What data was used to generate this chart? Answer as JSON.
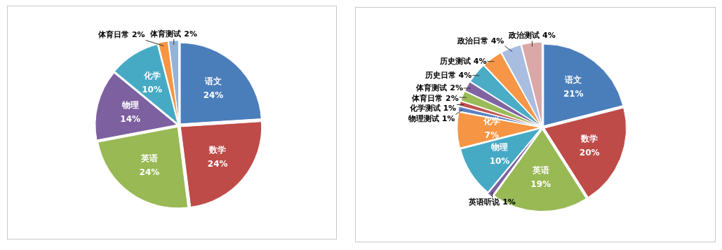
{
  "chart_data": [
    {
      "type": "pie",
      "categories": [
        "语文",
        "数学",
        "英语",
        "物理",
        "化学",
        "体育日常",
        "体育测试"
      ],
      "values": [
        24,
        24,
        24,
        14,
        10,
        2,
        2
      ],
      "value_labels": [
        "24%",
        "24%",
        "24%",
        "14%",
        "10%",
        "2%",
        "2%"
      ],
      "colors": [
        "#4a7ebb",
        "#be4b48",
        "#98b954",
        "#7d60a0",
        "#46aac5",
        "#f69544",
        "#95b3d7"
      ]
    },
    {
      "type": "pie",
      "categories": [
        "语文",
        "数学",
        "英语",
        "英语听说",
        "物理",
        "化学",
        "物理测试",
        "化学测试",
        "体育日常",
        "体育测试",
        "历史日常",
        "历史测试",
        "政治日常",
        "政治测试"
      ],
      "values": [
        21,
        20,
        19,
        1,
        10,
        7,
        1,
        1,
        2,
        2,
        4,
        4,
        4,
        4
      ],
      "value_labels": [
        "21%",
        "20%",
        "19%",
        "1%",
        "10%",
        "7%",
        "1%",
        "1%",
        "2%",
        "2%",
        "4%",
        "4%",
        "4%",
        "4%"
      ],
      "colors": [
        "#4a7ebb",
        "#be4b48",
        "#98b954",
        "#7d60a0",
        "#46aac5",
        "#f69544",
        "#5b7fbf",
        "#c0504d",
        "#9bbb59",
        "#8064a2",
        "#4bacc6",
        "#f79646",
        "#a9bde0",
        "#dba8a8"
      ]
    }
  ]
}
